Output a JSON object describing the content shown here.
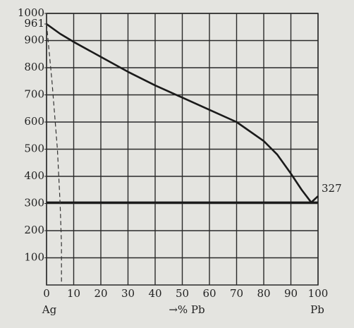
{
  "chart_data": {
    "type": "line",
    "xlabel": "→% Pb",
    "left_label": "Ag",
    "right_label": "Pb",
    "xlim": [
      0,
      100
    ],
    "ylim": [
      0,
      1000
    ],
    "y2lim": [
      0,
      1000
    ],
    "xticks": [
      0,
      10,
      20,
      30,
      40,
      50,
      60,
      70,
      80,
      90,
      100
    ],
    "yticks": [
      100,
      200,
      300,
      400,
      500,
      600,
      700,
      800,
      900,
      961,
      1000
    ],
    "ygrid": [
      100,
      200,
      300,
      400,
      500,
      600,
      700,
      800,
      900,
      1000
    ],
    "y2ticks": [
      327
    ],
    "grid": true,
    "series": [
      {
        "color": "#1a1a1a",
        "style": "solid",
        "x": [
          0,
          5,
          10,
          20,
          30,
          40,
          50,
          60,
          70,
          80,
          85,
          90,
          94,
          97.5,
          100
        ],
        "values": [
          961,
          925,
          895,
          840,
          785,
          735,
          690,
          645,
          600,
          530,
          480,
          410,
          350,
          304,
          327
        ]
      },
      {
        "color": "#1a1a1a",
        "style": "solid",
        "x": [
          0,
          100
        ],
        "values": [
          304,
          304
        ]
      },
      {
        "color": "#333333",
        "style": "dashed",
        "x": [
          0,
          2,
          4,
          5,
          5.5,
          5.5
        ],
        "values": [
          961,
          750,
          500,
          300,
          150,
          0
        ]
      }
    ]
  }
}
